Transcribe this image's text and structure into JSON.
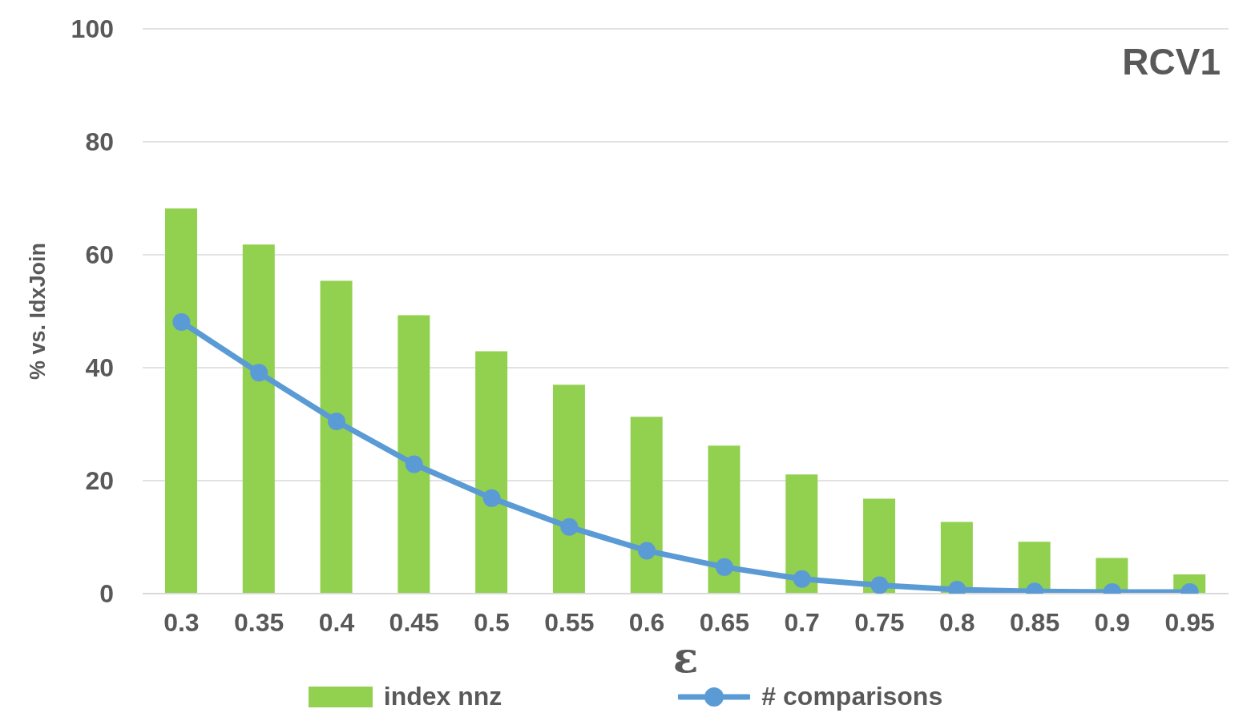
{
  "chart_data": {
    "type": "bar",
    "title": "RCV1",
    "xlabel": "ε",
    "ylabel": "% vs. IdxJoin",
    "categories": [
      "0.3",
      "0.35",
      "0.4",
      "0.45",
      "0.5",
      "0.55",
      "0.6",
      "0.65",
      "0.7",
      "0.75",
      "0.8",
      "0.85",
      "0.9",
      "0.95"
    ],
    "series": [
      {
        "name": "index nnz",
        "color": "#92d050",
        "values": [
          68.2,
          61.8,
          55.4,
          49.3,
          42.9,
          37.0,
          31.3,
          26.2,
          21.1,
          16.8,
          12.7,
          9.2,
          6.3,
          3.4
        ]
      },
      {
        "name": "# comparisons",
        "type": "line",
        "color": "#5b9bd5",
        "values": [
          48.1,
          39.1,
          30.5,
          22.9,
          16.9,
          11.8,
          7.6,
          4.7,
          2.6,
          1.5,
          0.7,
          0.4,
          0.3,
          0.3
        ]
      }
    ],
    "ylim": [
      0,
      100
    ],
    "yticks": [
      0,
      20,
      40,
      60,
      80,
      100
    ],
    "grid": "y",
    "legend": "bottom",
    "marker": "circle"
  }
}
